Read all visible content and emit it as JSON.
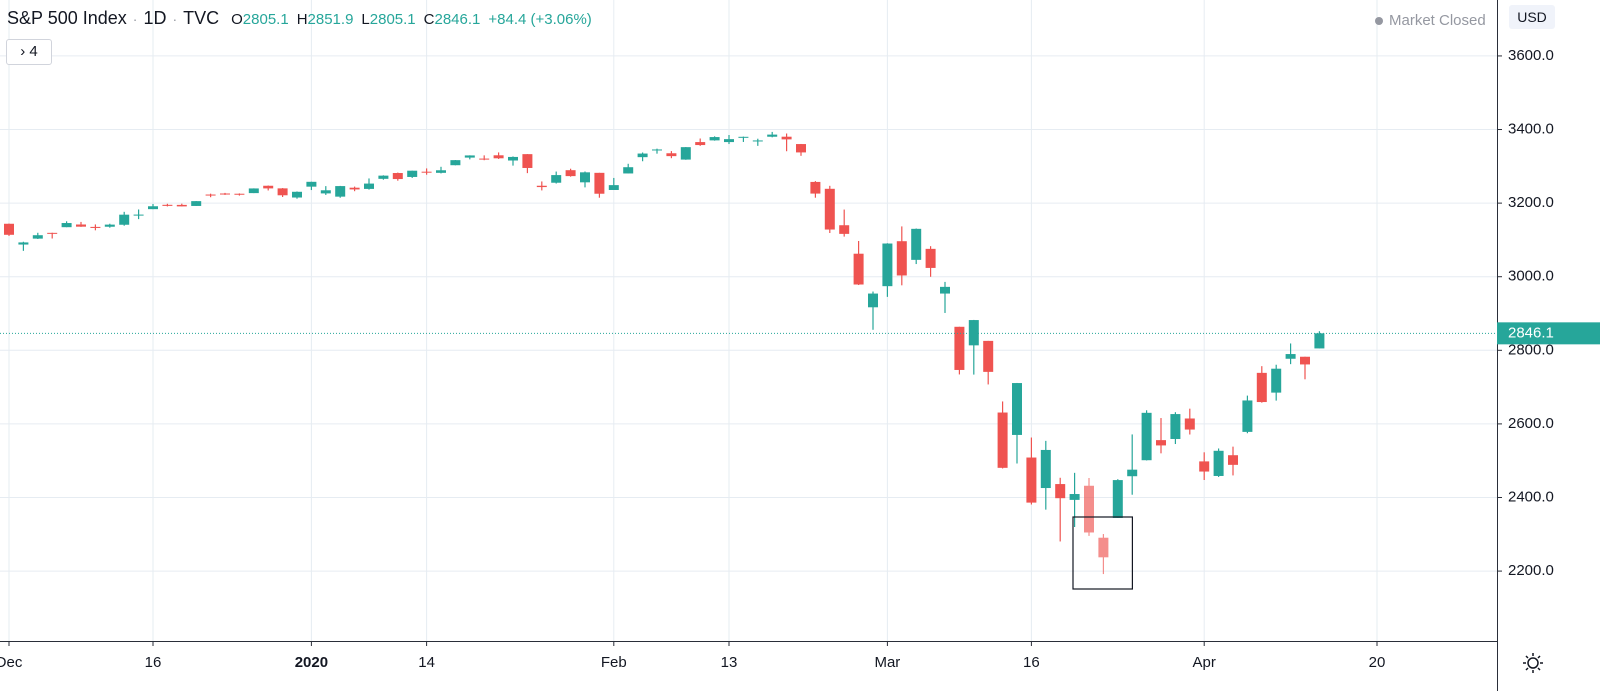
{
  "header": {
    "symbol": "S&P 500 Index",
    "interval": "1D",
    "exchange": "TVC",
    "open_label": "O",
    "high_label": "H",
    "low_label": "L",
    "close_label": "C",
    "change": "+84.4 (+3.06%)",
    "market_status": "Market Closed",
    "currency": "USD",
    "indicators_count": "4"
  },
  "chart_data": {
    "type": "candlestick",
    "categories": [
      "Dec",
      null,
      null,
      null,
      null,
      null,
      null,
      null,
      null,
      null,
      "16",
      null,
      null,
      null,
      null,
      null,
      null,
      null,
      null,
      null,
      null,
      "2020",
      null,
      null,
      null,
      null,
      null,
      null,
      null,
      "14",
      null,
      null,
      null,
      null,
      null,
      null,
      null,
      null,
      null,
      null,
      null,
      null,
      "Feb",
      null,
      null,
      null,
      null,
      null,
      null,
      null,
      "13",
      null,
      null,
      null,
      null,
      null,
      null,
      null,
      null,
      null,
      null,
      "Mar",
      null,
      null,
      null,
      null,
      null,
      null,
      null,
      null,
      null,
      "16",
      null,
      null,
      null,
      null,
      null,
      null,
      null,
      null,
      null,
      null,
      null,
      "Apr",
      null,
      null,
      null,
      null,
      null,
      null,
      null,
      null,
      null,
      null,
      null,
      "20"
    ],
    "open": [
      3143.9,
      3087.4,
      3103.5,
      3119.2,
      3134.6,
      3141.9,
      3135.4,
      3135.8,
      3141.2,
      3166.7,
      3183.6,
      3195.4,
      3195.2,
      3192.3,
      3223.3,
      3226.1,
      3225.5,
      3227.2,
      3247.2,
      3240.1,
      3215.2,
      3244.7,
      3226.4,
      3217.6,
      3241.9,
      3238.6,
      3266.0,
      3281.8,
      3271.1,
      3285.4,
      3282.3,
      3303.0,
      3323.7,
      3321.0,
      3330.0,
      3315.8,
      3333.1,
      3247.2,
      3255.4,
      3289.5,
      3256.5,
      3282.3,
      3235.7,
      3280.6,
      3324.9,
      3344.9,
      3335.5,
      3318.3,
      3365.9,
      3370.5,
      3365.9,
      3378.1,
      3369.0,
      3380.4,
      3380.5,
      3360.5,
      3257.6,
      3238.9,
      3139.9,
      3062.5,
      2916.9,
      2974.3,
      3096.5,
      3045.8,
      3075.7,
      2954.2,
      2863.9,
      2813.5,
      2825.6,
      2630.9,
      2570.0,
      2508.6,
      2425.7,
      2436.5,
      2393.5,
      2431.9,
      2290.7,
      2344.4,
      2457.8,
      2501.3,
      2555.9,
      2559.0,
      2614.7,
      2498.1,
      2458.5,
      2514.9,
      2578.3,
      2738.7,
      2685.0,
      2777.0,
      2782.5,
      2805.1,
      null,
      null,
      null,
      null
    ],
    "high": [
      3144.3,
      3095.0,
      3119.4,
      3119.5,
      3150.6,
      3148.9,
      3142.1,
      3144.0,
      3176.3,
      3182.7,
      3197.7,
      3198.2,
      3198.5,
      3205.5,
      3225.7,
      3227.8,
      3226.4,
      3240.1,
      3247.9,
      3240.9,
      3231.7,
      3258.1,
      3246.2,
      3246.8,
      3244.9,
      3267.1,
      3275.6,
      3283.0,
      3288.1,
      3294.3,
      3298.7,
      3317.1,
      3329.9,
      3329.8,
      3337.8,
      3326.9,
      3333.2,
      3258.9,
      3285.8,
      3293.5,
      3285.9,
      3282.3,
      3268.4,
      3306.9,
      3337.6,
      3348.0,
      3341.4,
      3352.3,
      3375.6,
      3381.5,
      3385.1,
      3380.7,
      3375.0,
      3393.5,
      3389.2,
      3360.8,
      3259.8,
      3247.0,
      3182.5,
      3097.1,
      2959.7,
      3091.0,
      3136.7,
      3131.0,
      3083.0,
      2985.9,
      2863.9,
      2882.6,
      2825.6,
      2661.0,
      2711.3,
      2563.0,
      2553.9,
      2453.6,
      2467.0,
      2453.0,
      2300.7,
      2449.7,
      2571.4,
      2637.0,
      2615.9,
      2631.8,
      2641.4,
      2522.8,
      2533.2,
      2538.2,
      2676.9,
      2756.9,
      2760.8,
      2818.6,
      2782.5,
      2851.9,
      null,
      null,
      null,
      null
    ],
    "low": [
      3110.8,
      3070.3,
      3102.5,
      3103.8,
      3134.6,
      3135.5,
      3126.1,
      3133.2,
      3138.5,
      3156.5,
      3183.6,
      3191.0,
      3191.1,
      3192.3,
      3216.0,
      3222.3,
      3220.5,
      3227.2,
      3234.4,
      3216.6,
      3212.0,
      3235.5,
      3222.3,
      3214.6,
      3232.4,
      3236.7,
      3263.7,
      3260.9,
      3268.4,
      3277.2,
      3280.7,
      3302.8,
      3318.9,
      3316.6,
      3320.0,
      3301.9,
      3281.5,
      3234.5,
      3253.2,
      3271.9,
      3242.8,
      3214.7,
      3235.7,
      3280.6,
      3313.8,
      3334.4,
      3322.1,
      3317.8,
      3355.6,
      3369.7,
      3360.5,
      3366.2,
      3355.6,
      3378.8,
      3341.0,
      3328.5,
      3214.7,
      3118.8,
      3109.0,
      2977.4,
      2855.8,
      2945.2,
      2976.6,
      3034.4,
      2999.8,
      2901.5,
      2734.4,
      2734.0,
      2707.2,
      2478.9,
      2492.4,
      2380.9,
      2367.0,
      2280.5,
      2319.8,
      2295.6,
      2191.9,
      2344.4,
      2407.5,
      2500.7,
      2520.0,
      2545.3,
      2571.2,
      2447.5,
      2455.8,
      2460.0,
      2574.6,
      2657.7,
      2663.3,
      2762.4,
      2721.2,
      2805.1,
      null,
      null,
      null,
      null
    ],
    "close": [
      3113.9,
      3093.2,
      3112.8,
      3117.4,
      3145.9,
      3136.0,
      3132.5,
      3141.6,
      3168.6,
      3168.8,
      3191.5,
      3192.5,
      3191.1,
      3205.4,
      3221.2,
      3224.0,
      3223.4,
      3239.9,
      3240.0,
      3221.3,
      3230.8,
      3257.9,
      3234.9,
      3246.3,
      3237.2,
      3253.1,
      3274.7,
      3265.4,
      3288.1,
      3283.2,
      3289.3,
      3316.8,
      3329.6,
      3320.8,
      3321.8,
      3325.5,
      3295.5,
      3243.6,
      3276.2,
      3273.4,
      3283.7,
      3225.5,
      3248.9,
      3297.6,
      3334.7,
      3345.8,
      3327.7,
      3352.1,
      3357.8,
      3379.5,
      3373.9,
      3380.2,
      3370.3,
      3386.2,
      3373.2,
      3337.8,
      3225.9,
      3128.2,
      3116.4,
      2978.8,
      2954.2,
      3090.2,
      3003.4,
      3130.1,
      3023.9,
      2972.4,
      2746.6,
      2882.2,
      2741.4,
      2480.6,
      2711.0,
      2386.1,
      2529.2,
      2398.1,
      2409.4,
      2304.9,
      2237.4,
      2447.3,
      2475.6,
      2630.1,
      2541.5,
      2626.7,
      2584.6,
      2470.5,
      2526.9,
      2488.7,
      2663.7,
      2659.4,
      2750.0,
      2789.8,
      2761.6,
      2846.1,
      null,
      null,
      null,
      null
    ],
    "up_color": "#26a69a",
    "down_color": "#ef5350",
    "grid": true,
    "ylim": [
      2010,
      3752
    ],
    "yticks": [
      {
        "value": 2200,
        "label": "2200.0"
      },
      {
        "value": 2400,
        "label": "2400.0"
      },
      {
        "value": 2600,
        "label": "2600.0"
      },
      {
        "value": 2800,
        "label": "2800.0"
      },
      {
        "value": 3000,
        "label": "3000.0"
      },
      {
        "value": 3200,
        "label": "3200.0"
      },
      {
        "value": 3400,
        "label": "3400.0"
      },
      {
        "value": 3600,
        "label": "3600.0"
      }
    ]
  }
}
